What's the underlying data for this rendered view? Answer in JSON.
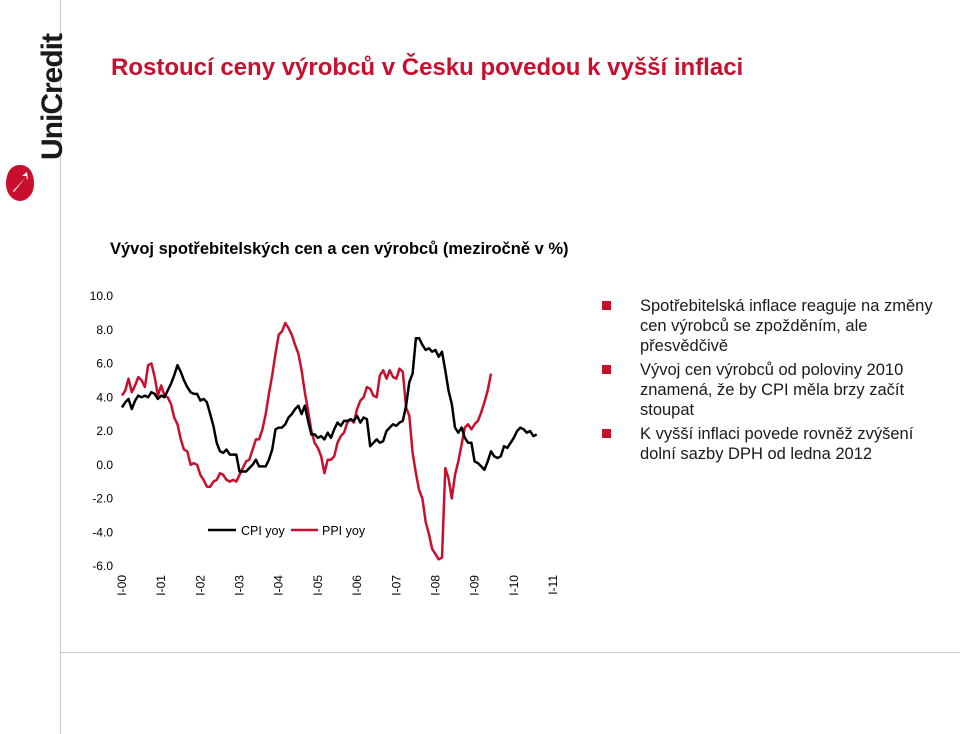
{
  "brand": {
    "name": "UniCredit",
    "color": "#c8102e"
  },
  "title": "Rostoucí ceny výrobců v Česku povedou k vyšší inflaci",
  "subtitle": "Vývoj spotřebitelských cen a cen výrobců (meziročně v %)",
  "bullets": [
    "Spotřebitelská inflace reaguje na změny cen výrobců se zpožděním, ale přesvědčivě",
    "Vývoj cen výrobců od poloviny 2010 znamená, že by CPI měla brzy začít stoupat",
    "K vyšší inflaci povede rovněž zvýšení dolní sazby DPH od ledna 2012"
  ],
  "chart_data": {
    "type": "line",
    "title": "Vývoj spotřebitelských cen a cen výrobců (meziročně v %)",
    "ylim": [
      -6,
      10
    ],
    "yticks": [
      "10.0",
      "8.0",
      "6.0",
      "4.0",
      "2.0",
      "0.0",
      "-2.0",
      "-4.0",
      "-6.0"
    ],
    "xticks": [
      "I-00",
      "I-01",
      "I-02",
      "I-03",
      "I-04",
      "I-05",
      "I-06",
      "I-07",
      "I-08",
      "I-09",
      "I-10",
      "I-11"
    ],
    "legend_position": "bottom",
    "series": [
      {
        "name": "CPI yoy",
        "color": "#000000",
        "values": [
          3.4,
          3.7,
          3.9,
          3.3,
          3.8,
          4.1,
          4.0,
          4.1,
          4.0,
          4.3,
          4.2,
          3.9,
          4.1,
          4.0,
          4.4,
          4.8,
          5.3,
          5.9,
          5.5,
          5.0,
          4.6,
          4.3,
          4.2,
          4.2,
          3.8,
          3.9,
          3.7,
          3.0,
          2.3,
          1.3,
          0.8,
          0.7,
          0.9,
          0.6,
          0.6,
          0.6,
          -0.4,
          -0.4,
          -0.4,
          -0.2,
          0.0,
          0.3,
          -0.1,
          -0.1,
          -0.1,
          0.3,
          0.9,
          2.1,
          2.2,
          2.2,
          2.4,
          2.8,
          3.0,
          3.3,
          3.5,
          3.0,
          3.5,
          2.6,
          1.8,
          1.8,
          1.6,
          1.7,
          1.5,
          1.9,
          1.6,
          2.1,
          2.5,
          2.3,
          2.6,
          2.6,
          2.7,
          2.6,
          2.9,
          2.5,
          2.8,
          2.7,
          1.1,
          1.3,
          1.5,
          1.3,
          1.4,
          2.0,
          2.2,
          2.4,
          2.3,
          2.5,
          2.6,
          3.5,
          4.9,
          5.4,
          7.5,
          7.5,
          7.1,
          6.8,
          6.9,
          6.7,
          6.8,
          6.4,
          6.7,
          5.6,
          4.4,
          3.6,
          2.2,
          1.9,
          2.2,
          1.6,
          1.3,
          1.3,
          0.2,
          0.1,
          -0.1,
          -0.3,
          0.2,
          0.8,
          0.5,
          0.4,
          0.5,
          1.1,
          1.0,
          1.3,
          1.6,
          2.0,
          2.2,
          2.1,
          1.9,
          2.0,
          1.7,
          1.8
        ]
      },
      {
        "name": "PPI yoy",
        "color": "#c8102e",
        "values": [
          4.1,
          4.4,
          5.1,
          4.3,
          4.7,
          5.2,
          5.0,
          4.6,
          5.9,
          6.0,
          5.2,
          4.1,
          4.7,
          4.1,
          4.0,
          3.6,
          2.8,
          2.4,
          1.5,
          0.9,
          0.8,
          0.0,
          0.1,
          0.0,
          -0.6,
          -0.9,
          -1.3,
          -1.3,
          -1.0,
          -0.9,
          -0.5,
          -0.6,
          -0.9,
          -1.0,
          -0.9,
          -1.0,
          -0.6,
          -0.2,
          0.2,
          0.3,
          0.9,
          1.5,
          1.5,
          2.1,
          3.0,
          4.2,
          5.3,
          6.6,
          7.7,
          7.9,
          8.4,
          8.1,
          7.7,
          7.1,
          6.6,
          5.6,
          4.3,
          3.2,
          2.0,
          1.3,
          1.0,
          0.5,
          -0.5,
          0.3,
          0.3,
          0.5,
          1.3,
          1.7,
          1.9,
          2.5,
          2.7,
          2.5,
          3.3,
          3.8,
          4.0,
          4.6,
          4.5,
          4.1,
          4.0,
          5.3,
          5.6,
          5.1,
          5.6,
          5.2,
          5.1,
          5.7,
          5.5,
          3.4,
          2.9,
          0.7,
          -0.5,
          -1.5,
          -2.0,
          -3.4,
          -4.1,
          -5.0,
          -5.3,
          -5.6,
          -5.5,
          -0.2,
          -0.8,
          -2.0,
          -0.6,
          0.2,
          1.2,
          2.2,
          2.4,
          2.1,
          2.4,
          2.6,
          3.1,
          3.7,
          4.4,
          5.4
        ]
      }
    ]
  }
}
